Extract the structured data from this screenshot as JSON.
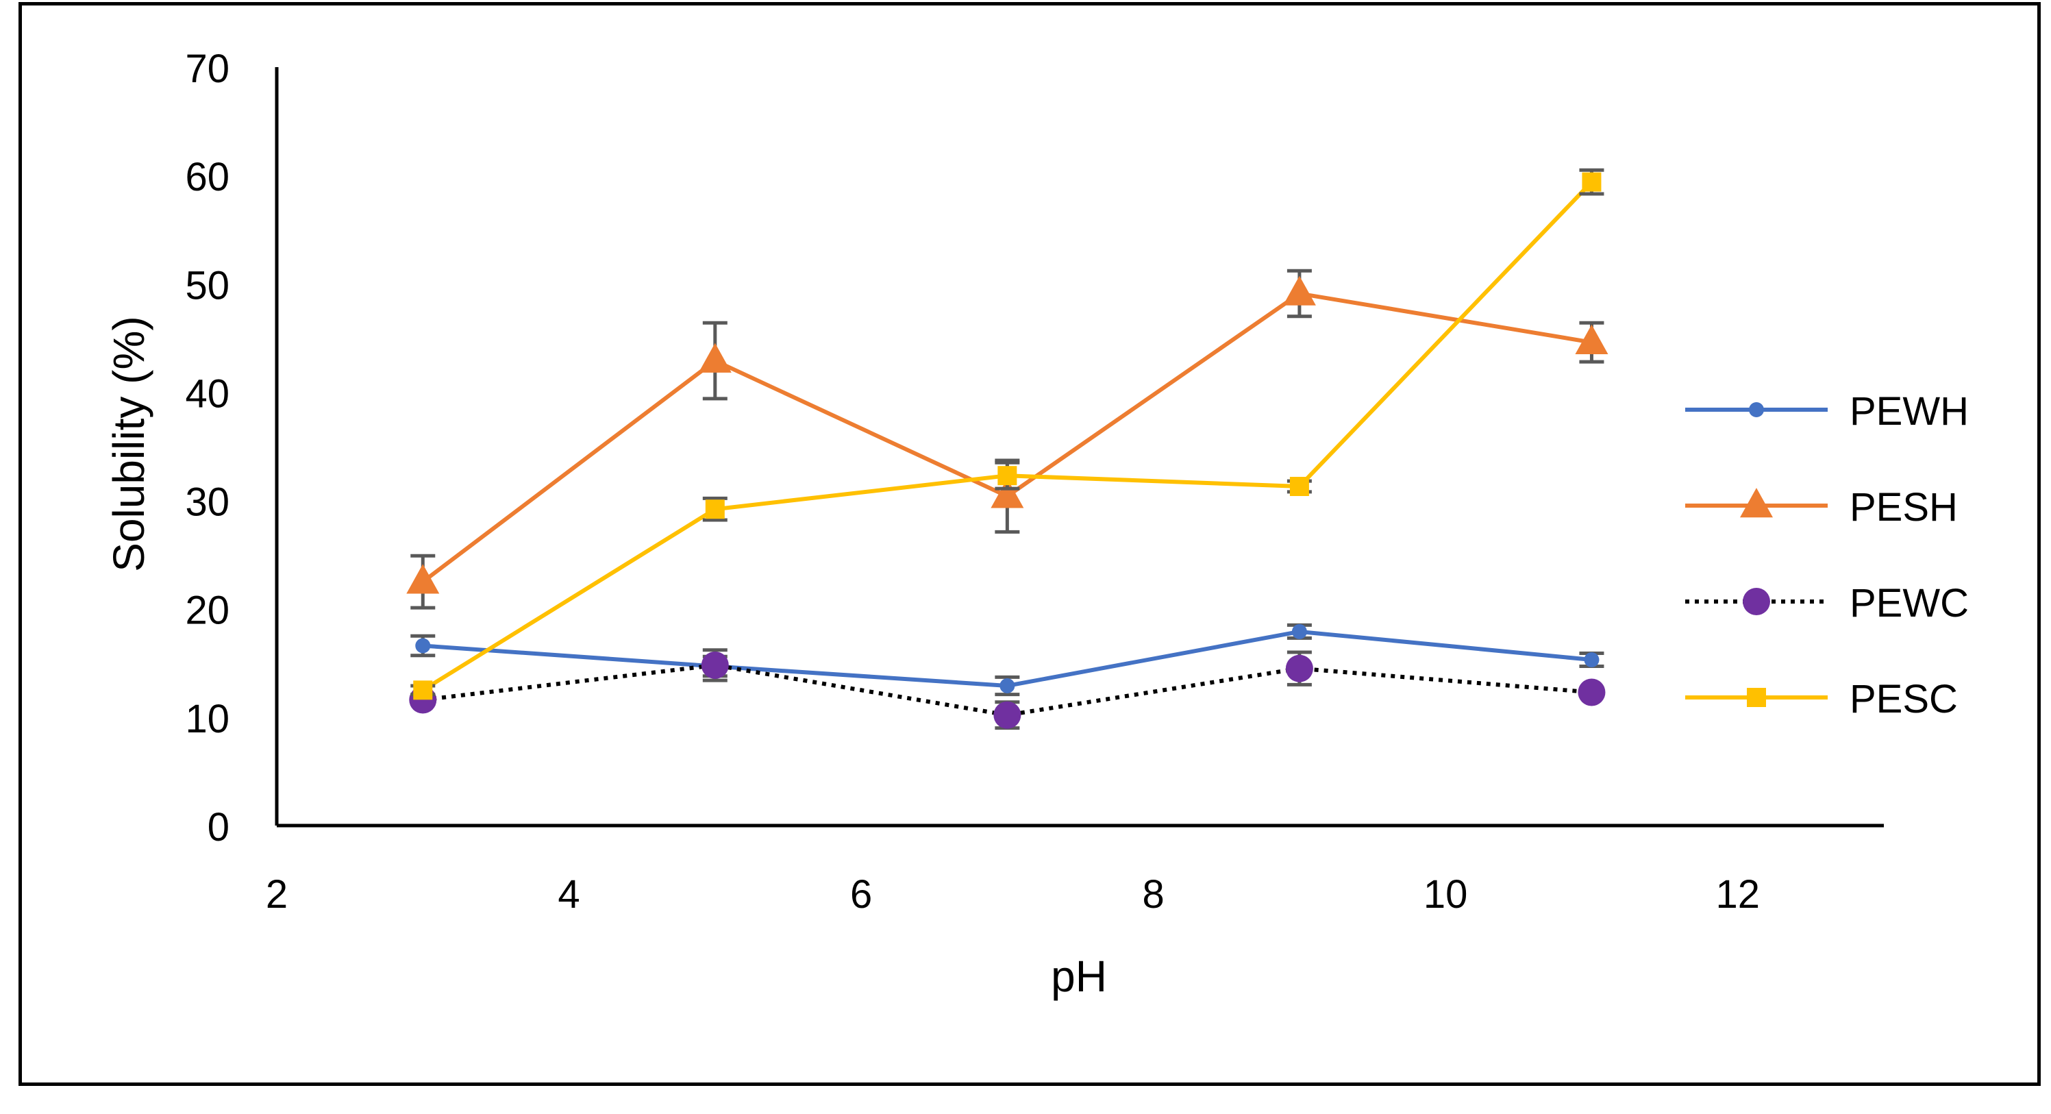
{
  "chart_data": {
    "type": "line",
    "title": "",
    "xlabel": "pH",
    "ylabel": "Solubility (%)",
    "xlim": [
      2,
      13
    ],
    "ylim": [
      0,
      70
    ],
    "xticks": [
      2,
      4,
      6,
      8,
      10,
      12
    ],
    "yticks": [
      0,
      10,
      20,
      30,
      40,
      50,
      60,
      70
    ],
    "grid": false,
    "legend_position": "right",
    "x": [
      3,
      5,
      7,
      9,
      11
    ],
    "series": [
      {
        "name": "PEWH",
        "color": "#4472C4",
        "marker": "circle-small",
        "dash": "solid",
        "values": [
          16.6,
          14.7,
          12.9,
          17.9,
          15.3
        ],
        "errors": [
          0.9,
          0.9,
          0.8,
          0.6,
          0.6
        ]
      },
      {
        "name": "PESH",
        "color": "#ED7D31",
        "marker": "triangle",
        "dash": "solid",
        "values": [
          22.5,
          42.9,
          30.4,
          49.1,
          44.6
        ],
        "errors": [
          2.4,
          3.5,
          3.3,
          2.1,
          1.8
        ]
      },
      {
        "name": "PEWC",
        "color": "#7030A0",
        "marker": "circle",
        "dash": "dotted",
        "values": [
          11.6,
          14.8,
          10.2,
          14.5,
          12.3
        ],
        "errors": [
          0.4,
          1.4,
          1.2,
          1.5,
          0.4
        ]
      },
      {
        "name": "PESC",
        "color": "#FFC000",
        "marker": "square",
        "dash": "solid",
        "values": [
          12.5,
          29.2,
          32.3,
          31.3,
          59.4
        ],
        "errors": [
          0.4,
          1.0,
          1.2,
          0.5,
          1.1
        ]
      }
    ]
  }
}
